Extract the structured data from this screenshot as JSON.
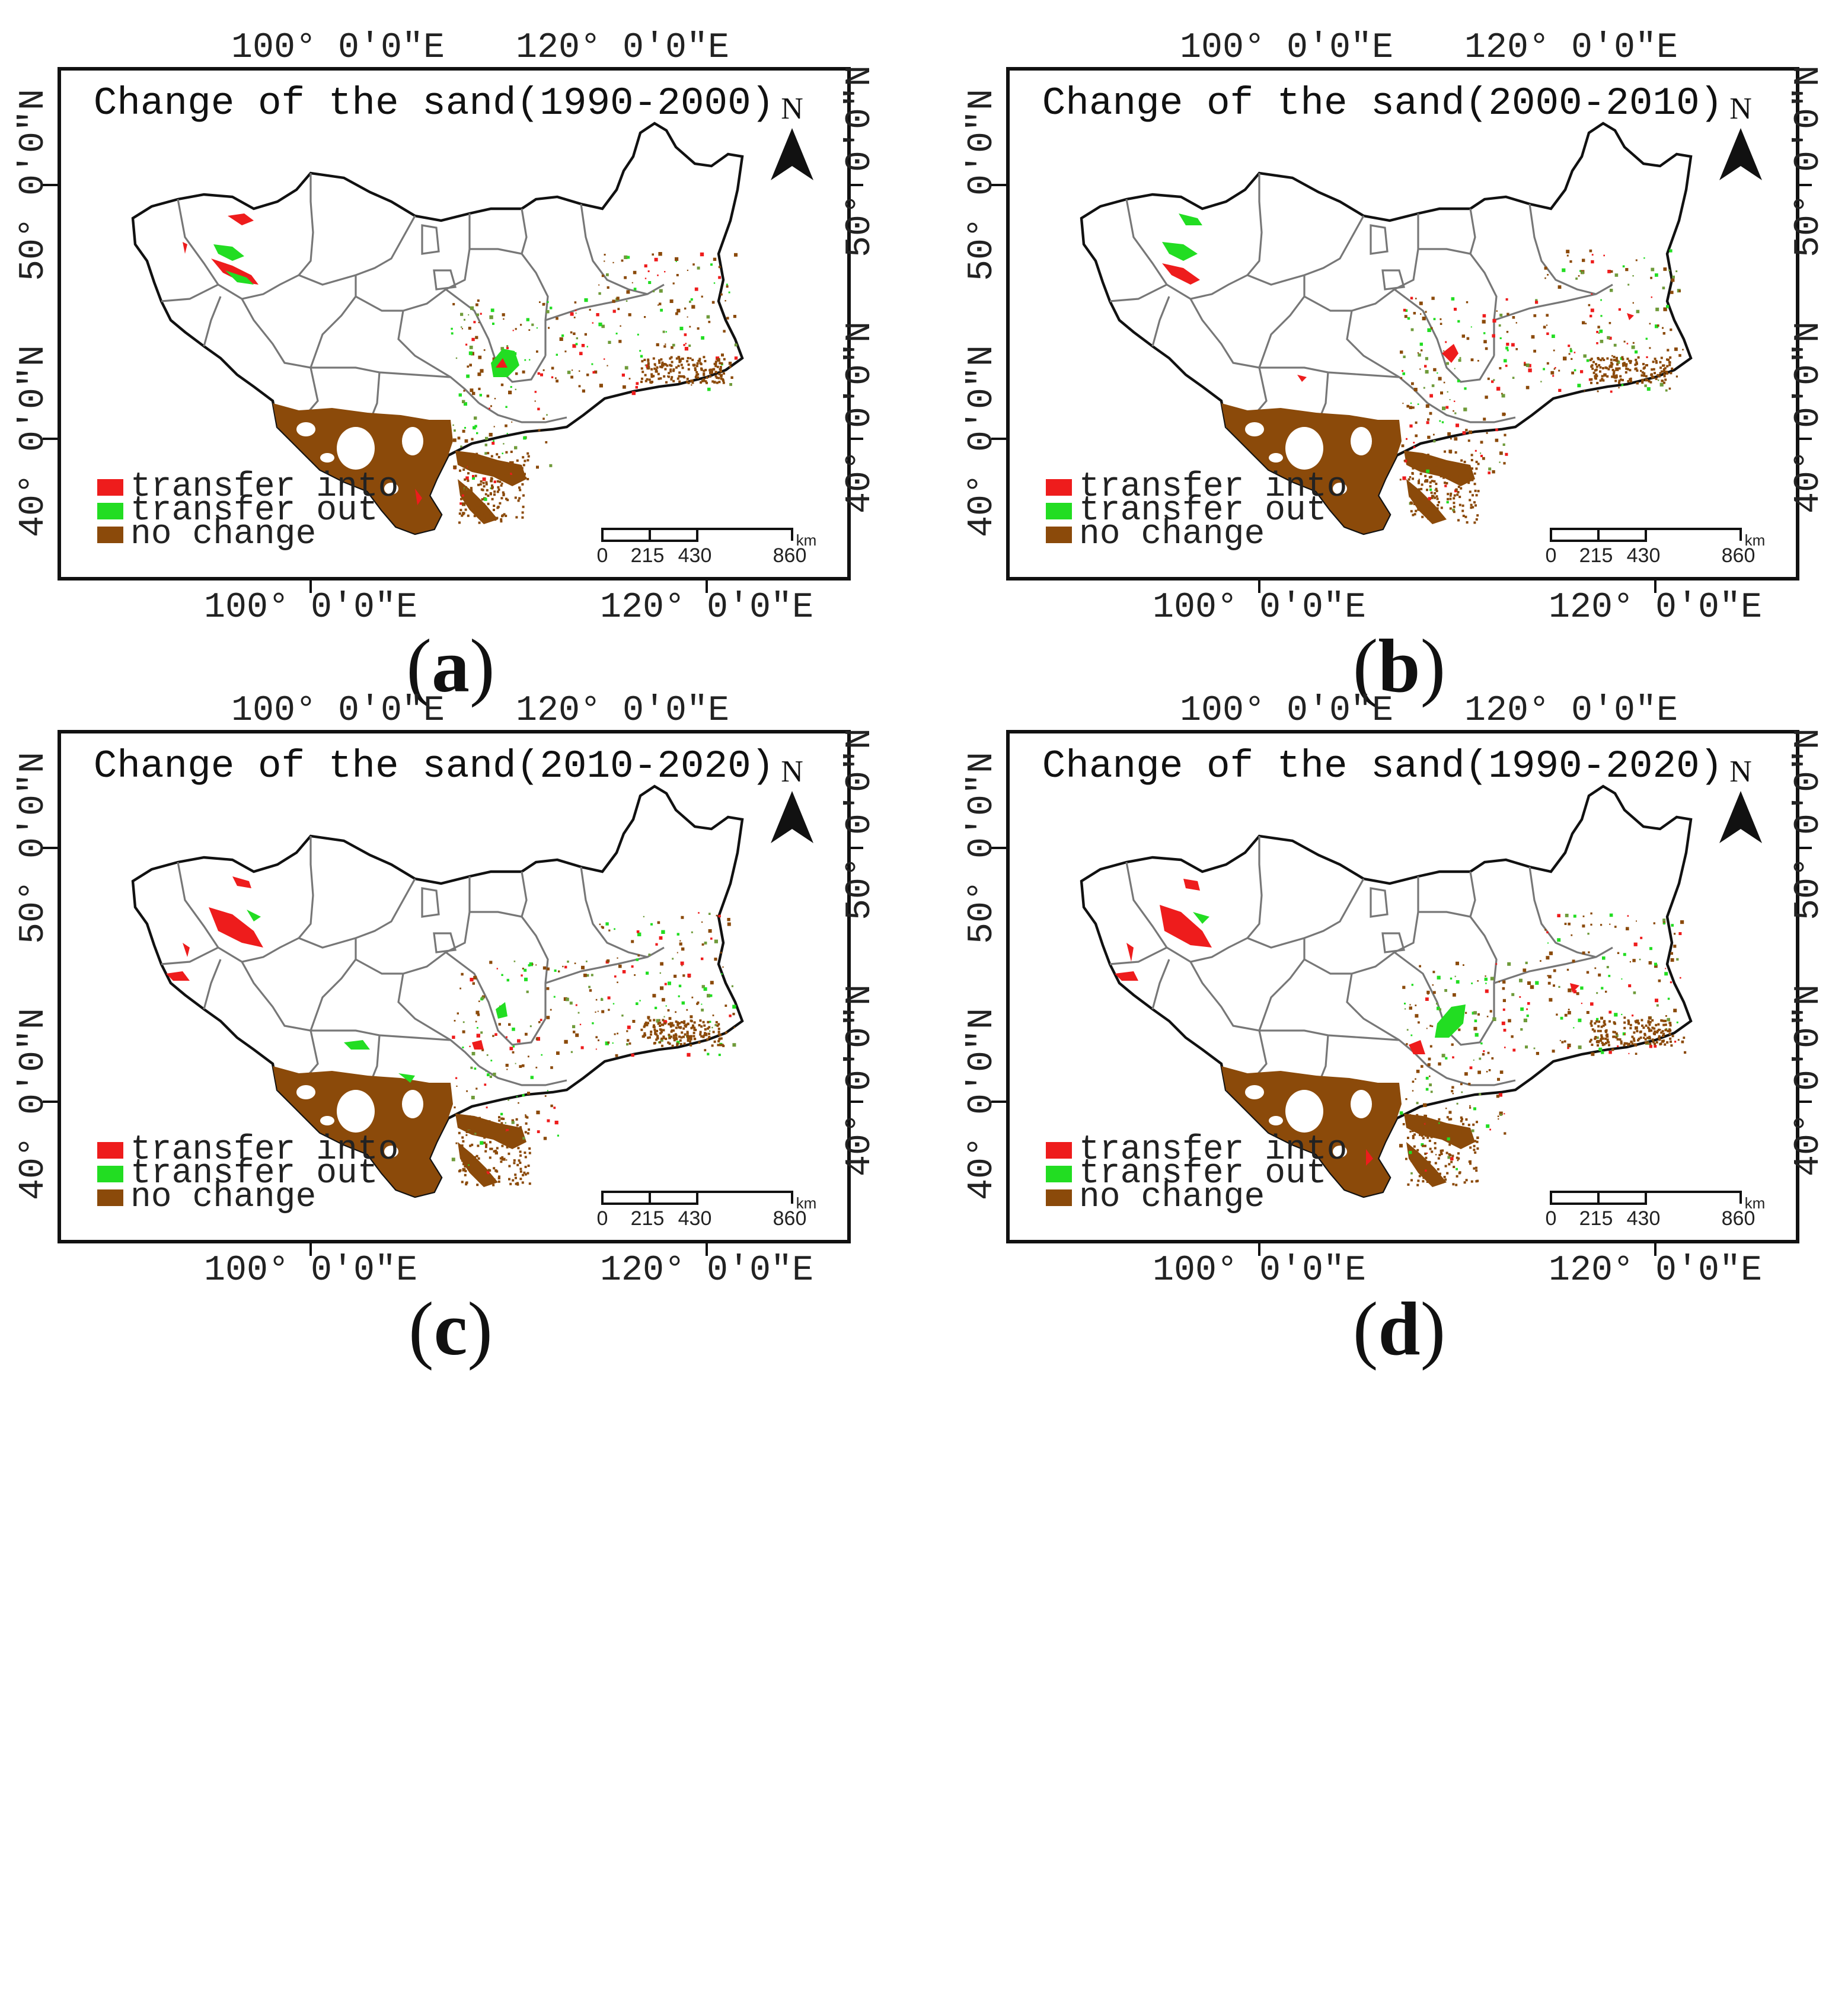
{
  "panels": [
    {
      "id": "a",
      "title": "Change of the sand(1990-2000)",
      "caption_letter": "a"
    },
    {
      "id": "b",
      "title": "Change of the sand(2000-2010)",
      "caption_letter": "b"
    },
    {
      "id": "c",
      "title": "Change of the sand(2010-2020)",
      "caption_letter": "c"
    },
    {
      "id": "d",
      "title": "Change of the sand(1990-2020)",
      "caption_letter": "d"
    }
  ],
  "axes": {
    "lon_100": "100° 0'0\"E",
    "lon_120": "120° 0'0\"E",
    "lat_50": "50° 0'0\"N",
    "lat_40": "40° 0'0\"N"
  },
  "legend": {
    "transfer_into": "transfer into",
    "transfer_out": "transfer out",
    "no_change": "no change"
  },
  "scale": {
    "ticks": [
      "0",
      "215",
      "430",
      "860"
    ],
    "unit": "km"
  },
  "north_label": "N",
  "colors": {
    "transfer_into": "#ee1c1c",
    "transfer_out": "#22dd22",
    "no_change": "#8b4a0a",
    "boundary": "#111111",
    "inner_boundary": "#777777"
  }
}
